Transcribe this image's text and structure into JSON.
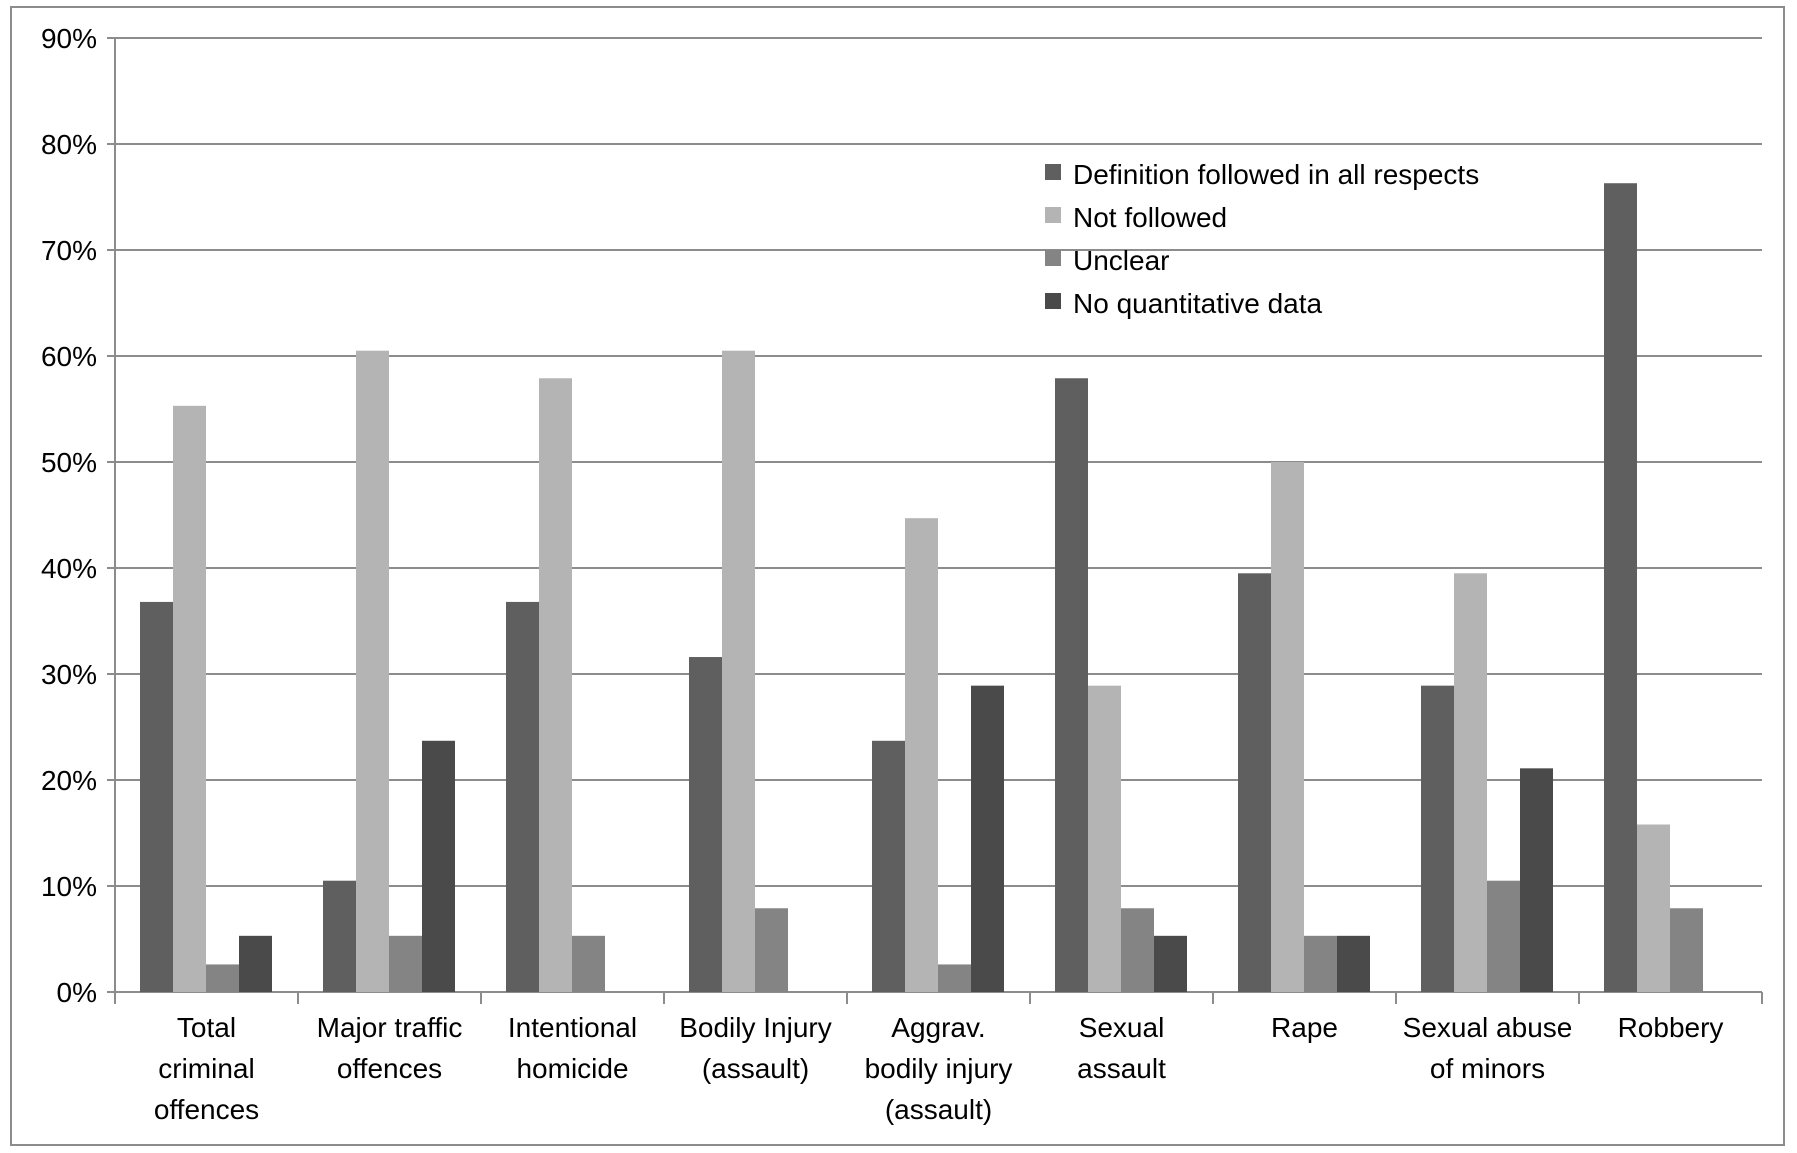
{
  "chart_data": {
    "type": "bar",
    "title": "",
    "xlabel": "",
    "ylabel": "",
    "ylim": [
      0,
      90
    ],
    "y_tick_step": 10,
    "y_tick_suffix": "%",
    "grid": true,
    "legend_position": "top-right",
    "categories": [
      [
        "Total",
        "criminal",
        "offences"
      ],
      [
        "Major traffic",
        "offences"
      ],
      [
        "Intentional",
        "homicide"
      ],
      [
        "Bodily Injury",
        "(assault)"
      ],
      [
        "Aggrav.",
        "bodily injury",
        "(assault)"
      ],
      [
        "Sexual",
        "assault"
      ],
      [
        "Rape"
      ],
      [
        "Sexual abuse",
        "of  minors"
      ],
      [
        "Robbery"
      ]
    ],
    "series": [
      {
        "name": "Definition followed in all respects",
        "color": "#5f5f5f",
        "values": [
          36.8,
          10.5,
          36.8,
          31.6,
          23.7,
          57.9,
          39.5,
          28.9,
          76.3
        ]
      },
      {
        "name": "Not followed",
        "color": "#b4b4b4",
        "values": [
          55.3,
          60.5,
          57.9,
          60.5,
          44.7,
          28.9,
          50.0,
          39.5,
          15.8
        ]
      },
      {
        "name": "Unclear",
        "color": "#848484",
        "values": [
          2.6,
          5.3,
          5.3,
          7.9,
          2.6,
          7.9,
          5.3,
          10.5,
          7.9
        ]
      },
      {
        "name": "No quantitative data",
        "color": "#4a4a4a",
        "values": [
          5.3,
          23.7,
          0,
          0,
          28.9,
          5.3,
          5.3,
          21.1,
          0
        ]
      }
    ]
  }
}
